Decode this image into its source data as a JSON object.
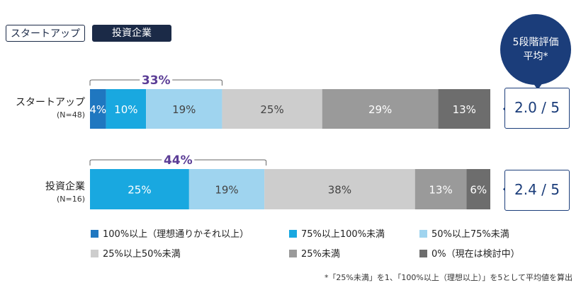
{
  "tabs": {
    "startup": "スタートアップ",
    "investor": "投資企業"
  },
  "bubble": {
    "line1": "5段階評価",
    "line2": "平均*"
  },
  "colors": {
    "navy": "#1b2a47",
    "bracket_text": "#5b3d96",
    "categories": [
      "#1f77c0",
      "#19a8e0",
      "#9fd4ef",
      "#cdcdcd",
      "#9a9a9a",
      "#6d6d6d"
    ]
  },
  "chart_data": {
    "type": "bar",
    "orientation": "horizontal",
    "stacked": true,
    "categories": [
      "スタートアップ",
      "投資企業"
    ],
    "n_labels": [
      "(N=48)",
      "(N=16)"
    ],
    "series": [
      {
        "name": "100%以上（理想通りかそれ以上）",
        "values": [
          4,
          0
        ]
      },
      {
        "name": "75%以上100%未満",
        "values": [
          10,
          25
        ]
      },
      {
        "name": "50%以上75%未満",
        "values": [
          19,
          19
        ]
      },
      {
        "name": "25%以上50%未満",
        "values": [
          25,
          38
        ]
      },
      {
        "name": "25%未満",
        "values": [
          29,
          13
        ]
      },
      {
        "name": "0%（現在は検討中）",
        "values": [
          13,
          6
        ]
      }
    ],
    "brackets": [
      {
        "label": "33%",
        "from": 0,
        "to": 33
      },
      {
        "label": "44%",
        "from": 0,
        "to": 44
      }
    ],
    "averages": [
      "2.0 / 5",
      "2.4 / 5"
    ],
    "legend_placement": "bottom",
    "xlim": [
      0,
      100
    ]
  },
  "footnote": "*「25%未満」を1、「100%以上（理想以上）」を5として平均値を算出"
}
